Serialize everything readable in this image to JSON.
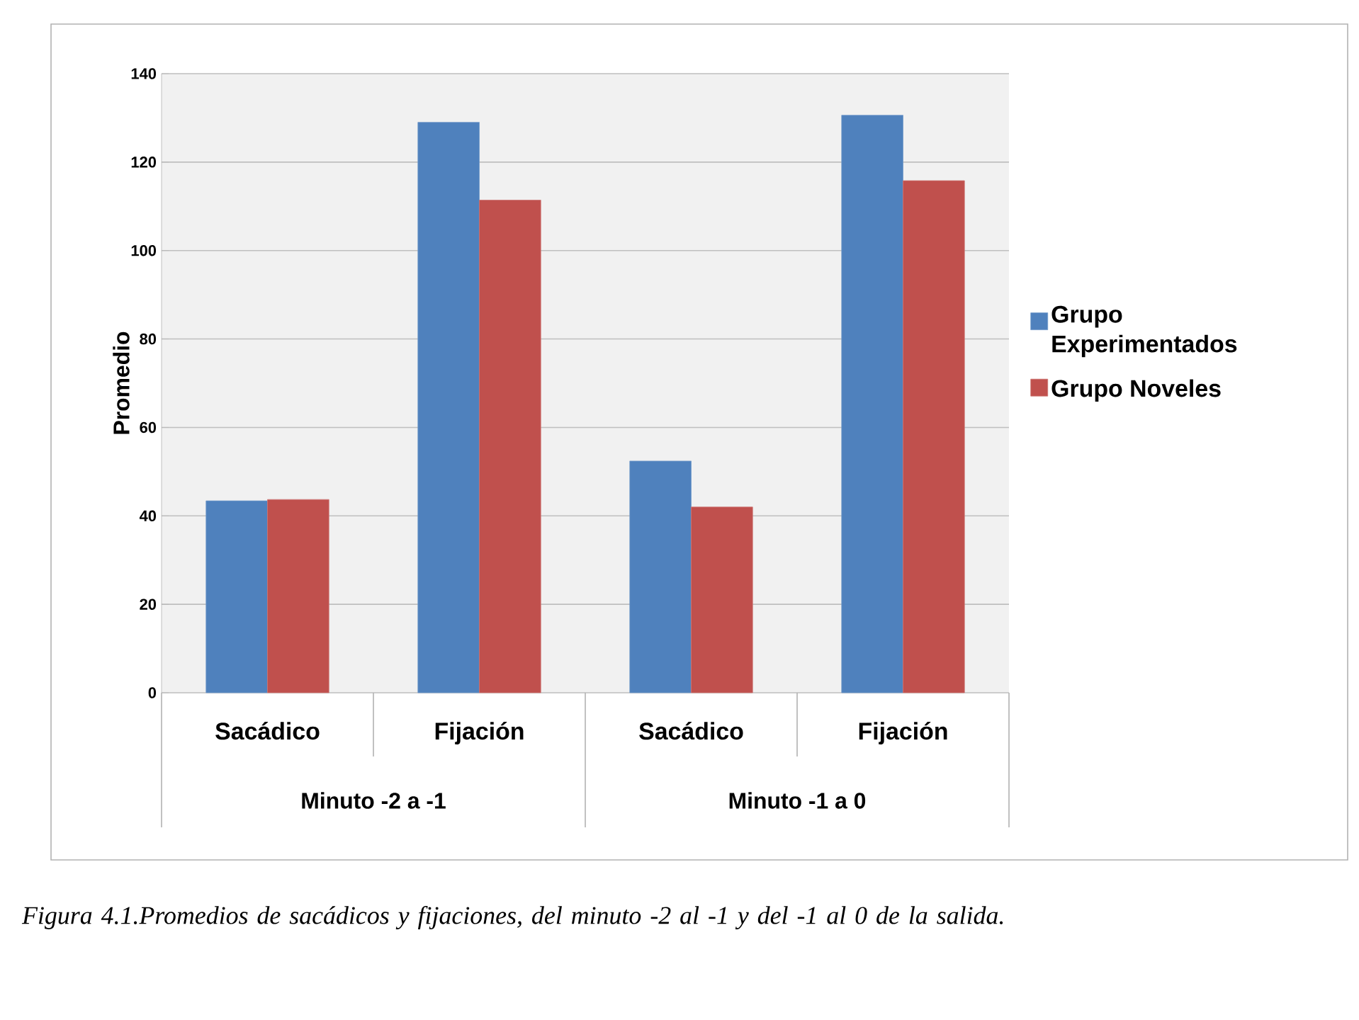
{
  "chart_data": {
    "type": "bar",
    "categories": [
      "Sacádico",
      "Fijación",
      "Sacádico",
      "Fijación"
    ],
    "series": [
      {
        "name": "Grupo Experimentados",
        "color": "#4f81bd",
        "values": [
          43.4,
          129,
          52.4,
          130.6
        ]
      },
      {
        "name": "Grupo Noveles",
        "color": "#c0504d",
        "values": [
          43.7,
          111.4,
          42,
          115.8
        ]
      }
    ],
    "ylabel": "Promedio",
    "ylim": [
      0,
      140
    ],
    "yticks": [
      0,
      20,
      40,
      60,
      80,
      100,
      120,
      140
    ],
    "grid": "y",
    "legend": "right",
    "annotations": [
      "Minuto -2 a -1",
      "Minuto -1 a 0",
      "*Figura 4.1.Promedios de sacádicos y fijaciones, del minuto -2 al -1 y del -1 al 0 de la salida.*"
    ]
  }
}
